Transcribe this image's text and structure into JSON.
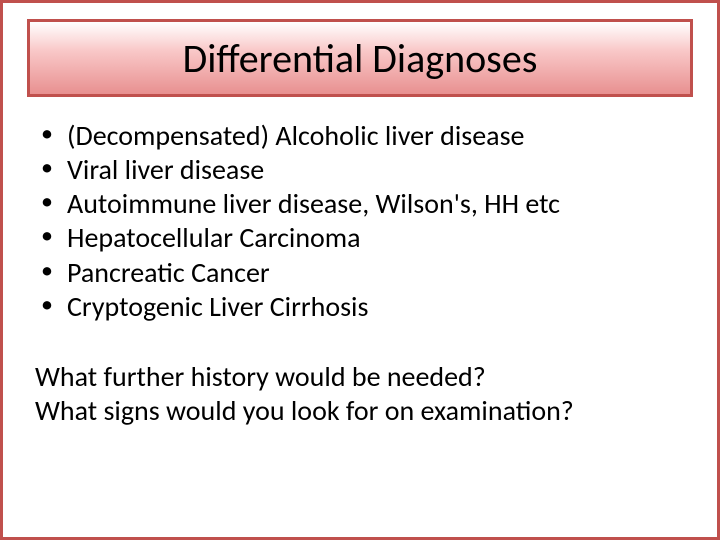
{
  "colors": {
    "slide_border": "#c0504d",
    "title_border": "#c0504d",
    "title_gradient_top": "#ffffff",
    "title_gradient_mid": "#f9c8c8",
    "title_gradient_bottom": "#e89090",
    "text": "#000000",
    "background": "#ffffff"
  },
  "typography": {
    "title_fontsize": 40,
    "body_fontsize": 28,
    "font_family": "Calibri"
  },
  "title": "Differential Diagnoses",
  "bullets": [
    "(Decompensated) Alcoholic liver disease",
    "Viral liver disease",
    "Autoimmune liver disease, Wilson's, HH etc",
    "Hepatocellular Carcinoma",
    "Pancreatic Cancer",
    "Cryptogenic Liver Cirrhosis"
  ],
  "questions": [
    "What further history would be needed?",
    "What signs would you look for on examination?"
  ]
}
